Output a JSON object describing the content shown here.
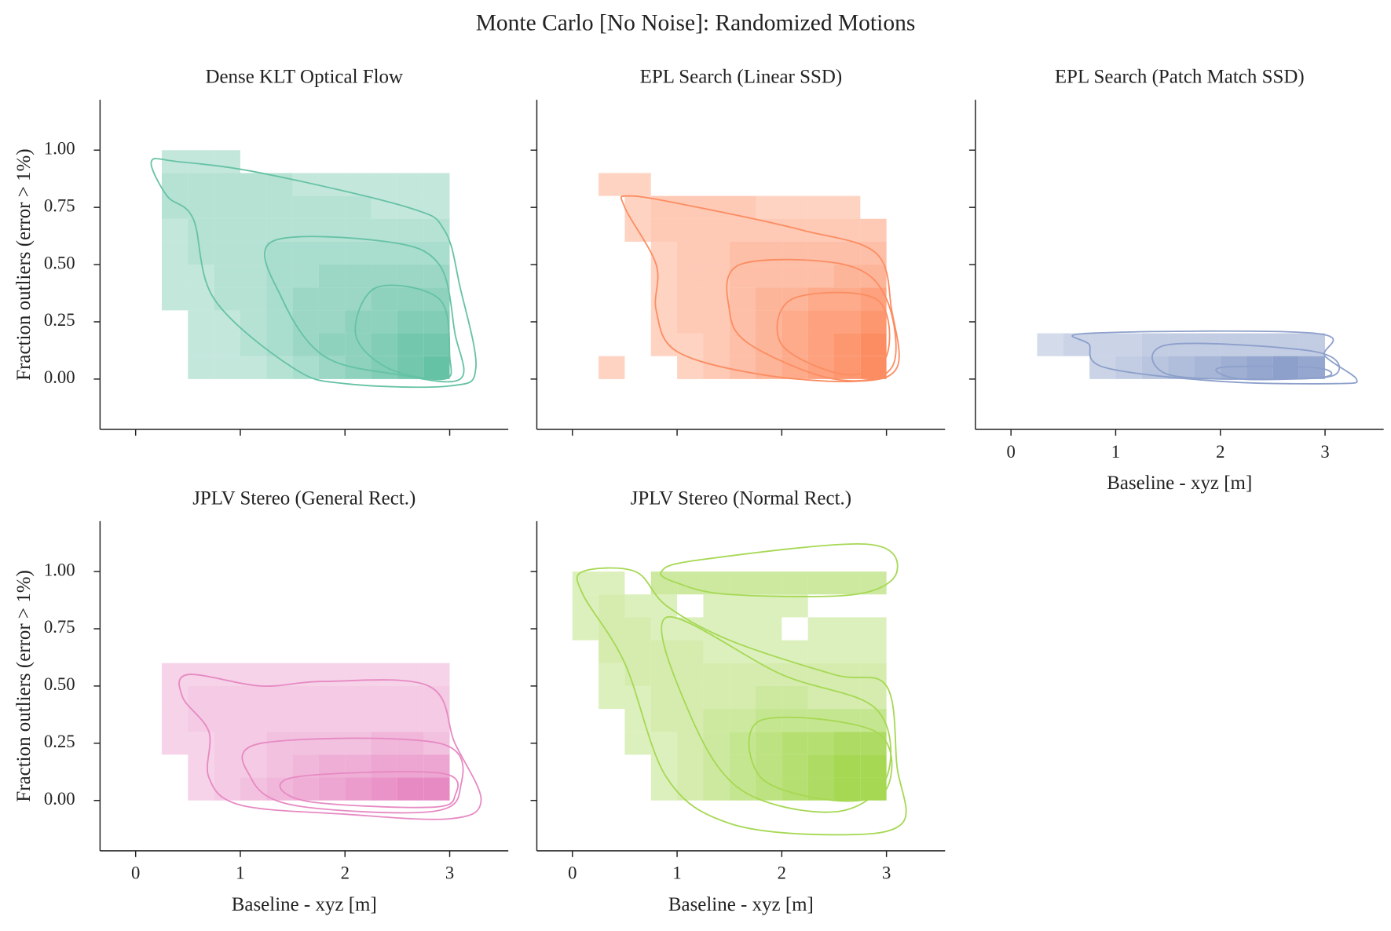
{
  "title": "Monte Carlo [No Noise]: Randomized Motions",
  "chart_data": [
    {
      "type": "hist2d",
      "title": "Dense KLT Optical Flow",
      "ylabel": "Fraction outliers (error > 1%)",
      "color": "#66c2a5",
      "xlim": [
        -0.34,
        3.56
      ],
      "ylim": [
        -0.22,
        1.22
      ],
      "xticks": [
        0,
        1,
        2,
        3
      ],
      "xticklabels": false,
      "yticks": [
        {
          "value": 0,
          "label": "0.00"
        },
        {
          "value": 0.25,
          "label": "0.25"
        },
        {
          "value": 0.5,
          "label": "0.50"
        },
        {
          "value": 0.75,
          "label": "0.75"
        },
        {
          "value": 1,
          "label": "1.00"
        }
      ],
      "yticklabels": true,
      "x_bins": [
        0,
        0.25,
        0.5,
        0.75,
        1,
        1.25,
        1.5,
        1.75,
        2,
        2.25,
        2.5,
        2.75,
        3
      ],
      "y_bins": [
        0,
        0.1,
        0.2,
        0.3,
        0.4,
        0.5,
        0.6,
        0.7,
        0.8,
        0.9,
        1
      ],
      "counts": [
        [
          0,
          0,
          1,
          1,
          1,
          2,
          3,
          4,
          5,
          6,
          7,
          8
        ],
        [
          0,
          0,
          1,
          1,
          2,
          3,
          4,
          5,
          5,
          6,
          7,
          7
        ],
        [
          0,
          0,
          1,
          1,
          2,
          3,
          4,
          4,
          5,
          5,
          6,
          6
        ],
        [
          0,
          1,
          1,
          2,
          2,
          3,
          4,
          4,
          4,
          5,
          5,
          5
        ],
        [
          0,
          1,
          1,
          2,
          2,
          3,
          3,
          4,
          4,
          4,
          4,
          4
        ],
        [
          0,
          1,
          2,
          2,
          2,
          3,
          3,
          3,
          3,
          3,
          3,
          3
        ],
        [
          0,
          1,
          2,
          2,
          2,
          2,
          2,
          2,
          2,
          2,
          2,
          2
        ],
        [
          0,
          2,
          2,
          2,
          2,
          2,
          2,
          2,
          2,
          1,
          1,
          1
        ],
        [
          0,
          2,
          2,
          2,
          2,
          2,
          1,
          1,
          1,
          1,
          1,
          1
        ],
        [
          0,
          1,
          1,
          1,
          0,
          0,
          0,
          0,
          0,
          0,
          0,
          0
        ]
      ],
      "contours": [
        {
          "x": [
            0.15,
            0.4,
            1.2,
            2.6,
            2.95,
            3.1,
            3.25,
            3.0,
            2.0,
            1.5,
            0.75,
            0.55,
            0.3
          ],
          "y": [
            0.95,
            0.95,
            0.9,
            0.75,
            0.65,
            0.4,
            0.05,
            -0.03,
            -0.02,
            0.05,
            0.35,
            0.7,
            0.8
          ]
        },
        {
          "x": [
            1.3,
            2.4,
            2.9,
            3.05,
            3.1,
            2.5,
            1.8,
            1.4
          ],
          "y": [
            0.6,
            0.6,
            0.5,
            0.2,
            0.0,
            0.02,
            0.1,
            0.35
          ]
        },
        {
          "x": [
            2.3,
            2.9,
            3.0,
            2.95,
            2.4,
            2.1
          ],
          "y": [
            0.4,
            0.35,
            0.1,
            0.0,
            0.05,
            0.2
          ]
        }
      ]
    },
    {
      "type": "hist2d",
      "title": "EPL Search (Linear SSD)",
      "color": "#fc8d62",
      "xlim": [
        -0.34,
        3.56
      ],
      "ylim": [
        -0.22,
        1.22
      ],
      "xticks": [
        0,
        1,
        2,
        3
      ],
      "xticklabels": false,
      "yticks": [
        0,
        0.25,
        0.5,
        0.75,
        1
      ],
      "yticklabels": false,
      "x_bins": [
        0,
        0.25,
        0.5,
        0.75,
        1,
        1.25,
        1.5,
        1.75,
        2,
        2.25,
        2.5,
        2.75,
        3
      ],
      "y_bins": [
        0,
        0.1,
        0.2,
        0.3,
        0.4,
        0.5,
        0.6,
        0.7,
        0.8,
        0.9,
        1
      ],
      "counts": [
        [
          0,
          1,
          0,
          0,
          1,
          2,
          3,
          4,
          5,
          6,
          7,
          8
        ],
        [
          0,
          0,
          0,
          1,
          1,
          2,
          3,
          4,
          5,
          6,
          7,
          8
        ],
        [
          0,
          0,
          0,
          1,
          2,
          2,
          3,
          4,
          5,
          6,
          6,
          7
        ],
        [
          0,
          0,
          0,
          1,
          2,
          2,
          3,
          4,
          4,
          5,
          5,
          6
        ],
        [
          0,
          0,
          0,
          1,
          2,
          2,
          3,
          3,
          3,
          3,
          4,
          4
        ],
        [
          0,
          0,
          0,
          1,
          2,
          2,
          3,
          3,
          3,
          3,
          3,
          3
        ],
        [
          0,
          0,
          1,
          2,
          2,
          2,
          2,
          2,
          2,
          2,
          2,
          2
        ],
        [
          0,
          0,
          1,
          2,
          2,
          2,
          2,
          1,
          1,
          1,
          1,
          0
        ],
        [
          0,
          1,
          1,
          0,
          0,
          0,
          0,
          0,
          0,
          0,
          0,
          0
        ],
        [
          0,
          0,
          0,
          0,
          0,
          0,
          0,
          0,
          0,
          0,
          0,
          0
        ]
      ],
      "contours": [
        {
          "x": [
            0.55,
            1.2,
            2.2,
            2.9,
            3.05,
            3.1,
            2.7,
            1.8,
            1.0,
            0.8,
            0.8,
            0.5
          ],
          "y": [
            0.8,
            0.75,
            0.65,
            0.55,
            0.3,
            0.05,
            -0.01,
            0.02,
            0.12,
            0.3,
            0.5,
            0.75
          ]
        },
        {
          "x": [
            1.6,
            2.6,
            3.0,
            3.05,
            2.5,
            1.7,
            1.5
          ],
          "y": [
            0.5,
            0.5,
            0.35,
            0.05,
            0.0,
            0.15,
            0.3
          ]
        },
        {
          "x": [
            2.1,
            2.9,
            3.0,
            2.6,
            2.0
          ],
          "y": [
            0.35,
            0.35,
            0.1,
            0.02,
            0.15
          ]
        }
      ]
    },
    {
      "type": "hist2d",
      "title": "EPL Search (Patch Match SSD)",
      "xlabel": "Baseline - xyz [m]",
      "color": "#8da0cb",
      "xlim": [
        -0.34,
        3.56
      ],
      "ylim": [
        -0.22,
        1.22
      ],
      "xticks": [
        0,
        1,
        2,
        3
      ],
      "xticklabels": true,
      "yticks": [
        0,
        0.25,
        0.5,
        0.75,
        1
      ],
      "yticklabels": false,
      "x_bins": [
        0,
        0.25,
        0.5,
        0.75,
        1,
        1.25,
        1.5,
        1.75,
        2,
        2.25,
        2.5,
        2.75,
        3
      ],
      "y_bins": [
        0,
        0.1,
        0.2,
        0.3,
        0.4,
        0.5,
        0.6,
        0.7,
        0.8,
        0.9,
        1
      ],
      "counts": [
        [
          0,
          0,
          0,
          2,
          3,
          4,
          5,
          6,
          7,
          8,
          9,
          8
        ],
        [
          0,
          1,
          2,
          2,
          2,
          3,
          3,
          3,
          3,
          3,
          3,
          3
        ],
        [
          0,
          0,
          0,
          0,
          0,
          0,
          0,
          0,
          0,
          0,
          0,
          0
        ],
        [
          0,
          0,
          0,
          0,
          0,
          0,
          0,
          0,
          0,
          0,
          0,
          0
        ],
        [
          0,
          0,
          0,
          0,
          0,
          0,
          0,
          0,
          0,
          0,
          0,
          0
        ],
        [
          0,
          0,
          0,
          0,
          0,
          0,
          0,
          0,
          0,
          0,
          0,
          0
        ],
        [
          0,
          0,
          0,
          0,
          0,
          0,
          0,
          0,
          0,
          0,
          0,
          0
        ],
        [
          0,
          0,
          0,
          0,
          0,
          0,
          0,
          0,
          0,
          0,
          0,
          0
        ],
        [
          0,
          0,
          0,
          0,
          0,
          0,
          0,
          0,
          0,
          0,
          0,
          0
        ],
        [
          0,
          0,
          0,
          0,
          0,
          0,
          0,
          0,
          0,
          0,
          0,
          0
        ]
      ],
      "contours": [
        {
          "x": [
            0.75,
            2.9,
            3.0,
            3.3,
            3.1,
            2.0,
            0.9,
            0.75
          ],
          "y": [
            0.2,
            0.2,
            0.1,
            0.0,
            -0.02,
            -0.01,
            0.05,
            0.15
          ]
        },
        {
          "x": [
            1.5,
            2.9,
            3.1,
            2.5,
            1.5
          ],
          "y": [
            0.15,
            0.12,
            0.02,
            0.0,
            0.02
          ]
        },
        {
          "x": [
            2.0,
            2.9,
            3.0,
            2.2
          ],
          "y": [
            0.05,
            0.05,
            0.01,
            0.0
          ]
        }
      ]
    },
    {
      "type": "hist2d",
      "title": "JPLV Stereo (General Rect.)",
      "xlabel": "Baseline - xyz [m]",
      "ylabel": "Fraction outliers (error > 1%)",
      "color": "#e78ac3",
      "xlim": [
        -0.34,
        3.56
      ],
      "ylim": [
        -0.22,
        1.22
      ],
      "xticks": [
        0,
        1,
        2,
        3
      ],
      "xticklabels": true,
      "yticks": [
        {
          "value": 0,
          "label": "0.00"
        },
        {
          "value": 0.25,
          "label": "0.25"
        },
        {
          "value": 0.5,
          "label": "0.50"
        },
        {
          "value": 0.75,
          "label": "0.75"
        },
        {
          "value": 1,
          "label": "1.00"
        }
      ],
      "yticklabels": true,
      "x_bins": [
        0,
        0.25,
        0.5,
        0.75,
        1,
        1.25,
        1.5,
        1.75,
        2,
        2.25,
        2.5,
        2.75,
        3
      ],
      "y_bins": [
        0,
        0.1,
        0.2,
        0.3,
        0.4,
        0.5,
        0.6,
        0.7,
        0.8,
        0.9,
        1
      ],
      "counts": [
        [
          0,
          0,
          1,
          2,
          3,
          4,
          5,
          6,
          7,
          8,
          9,
          9
        ],
        [
          0,
          0,
          1,
          2,
          2,
          3,
          4,
          5,
          5,
          6,
          6,
          6
        ],
        [
          0,
          1,
          1,
          2,
          2,
          3,
          3,
          3,
          3,
          4,
          4,
          3
        ],
        [
          0,
          1,
          2,
          2,
          2,
          2,
          2,
          2,
          2,
          2,
          2,
          2
        ],
        [
          0,
          1,
          2,
          2,
          2,
          2,
          2,
          2,
          2,
          2,
          2,
          2
        ],
        [
          0,
          1,
          1,
          1,
          1,
          1,
          1,
          1,
          1,
          1,
          1,
          1
        ],
        [
          0,
          0,
          0,
          0,
          0,
          0,
          0,
          0,
          0,
          0,
          0,
          0
        ],
        [
          0,
          0,
          0,
          0,
          0,
          0,
          0,
          0,
          0,
          0,
          0,
          0
        ],
        [
          0,
          0,
          0,
          0,
          0,
          0,
          0,
          0,
          0,
          0,
          0,
          0
        ],
        [
          0,
          0,
          0,
          0,
          0,
          0,
          0,
          0,
          0,
          0,
          0,
          0
        ]
      ],
      "contours": [
        {
          "x": [
            0.5,
            1.2,
            1.8,
            2.8,
            3.05,
            3.3,
            3.0,
            2.0,
            1.0,
            0.7,
            0.7,
            0.45
          ],
          "y": [
            0.55,
            0.5,
            0.52,
            0.5,
            0.25,
            0.0,
            -0.08,
            -0.06,
            -0.02,
            0.1,
            0.3,
            0.45
          ]
        },
        {
          "x": [
            1.2,
            2.9,
            3.1,
            2.8,
            1.5,
            1.1
          ],
          "y": [
            0.25,
            0.25,
            0.05,
            -0.05,
            -0.02,
            0.1
          ]
        },
        {
          "x": [
            1.5,
            2.9,
            3.05,
            2.8,
            1.6
          ],
          "y": [
            0.1,
            0.12,
            0.02,
            -0.03,
            0.0
          ]
        }
      ]
    },
    {
      "type": "hist2d",
      "title": "JPLV Stereo (Normal Rect.)",
      "xlabel": "Baseline - xyz [m]",
      "color": "#a6d854",
      "xlim": [
        -0.34,
        3.56
      ],
      "ylim": [
        -0.22,
        1.22
      ],
      "xticks": [
        0,
        1,
        2,
        3
      ],
      "xticklabels": true,
      "yticks": [
        0,
        0.25,
        0.5,
        0.75,
        1
      ],
      "yticklabels": false,
      "x_bins": [
        0,
        0.25,
        0.5,
        0.75,
        1,
        1.25,
        1.5,
        1.75,
        2,
        2.25,
        2.5,
        2.75,
        3
      ],
      "y_bins": [
        0,
        0.1,
        0.2,
        0.3,
        0.4,
        0.5,
        0.6,
        0.7,
        0.8,
        0.9,
        1
      ],
      "counts": [
        [
          0,
          0,
          0,
          1,
          2,
          3,
          4,
          5,
          6,
          7,
          8,
          8
        ],
        [
          0,
          0,
          0,
          1,
          2,
          3,
          4,
          5,
          6,
          7,
          8,
          8
        ],
        [
          0,
          0,
          1,
          1,
          2,
          3,
          4,
          5,
          6,
          6,
          7,
          7
        ],
        [
          0,
          0,
          1,
          2,
          2,
          3,
          3,
          4,
          4,
          4,
          4,
          4
        ],
        [
          0,
          1,
          1,
          2,
          2,
          2,
          2,
          3,
          3,
          2,
          2,
          2
        ],
        [
          0,
          1,
          2,
          2,
          2,
          2,
          2,
          2,
          2,
          2,
          2,
          2
        ],
        [
          0,
          2,
          2,
          2,
          2,
          1,
          1,
          1,
          1,
          1,
          1,
          1
        ],
        [
          1,
          2,
          2,
          1,
          1,
          1,
          1,
          1,
          0,
          1,
          1,
          1
        ],
        [
          1,
          2,
          1,
          1,
          0,
          1,
          1,
          1,
          1,
          0,
          0,
          0
        ],
        [
          1,
          1,
          0,
          3,
          3,
          3,
          3,
          3,
          3,
          3,
          3,
          3
        ]
      ],
      "contours": [
        {
          "x": [
            0.1,
            0.6,
            0.9,
            1.5,
            2.5,
            3.0,
            3.1,
            3.15,
            2.5,
            1.5,
            0.9,
            0.5,
            0.1
          ],
          "y": [
            1.0,
            1.0,
            0.85,
            0.7,
            0.55,
            0.5,
            0.15,
            -0.1,
            -0.15,
            -0.1,
            0.1,
            0.6,
            0.9
          ]
        },
        {
          "x": [
            0.85,
            1.2,
            2.8,
            3.1,
            2.7,
            1.5,
            1.0
          ],
          "y": [
            1.0,
            1.05,
            1.12,
            1.0,
            0.9,
            0.9,
            0.95
          ]
        },
        {
          "x": [
            0.9,
            2.0,
            2.9,
            3.0,
            2.5,
            1.6,
            1.1
          ],
          "y": [
            0.8,
            0.55,
            0.4,
            0.1,
            -0.05,
            0.05,
            0.4
          ]
        },
        {
          "x": [
            1.8,
            2.9,
            3.0,
            2.5,
            1.8
          ],
          "y": [
            0.35,
            0.3,
            0.05,
            0.0,
            0.1
          ]
        }
      ]
    }
  ]
}
